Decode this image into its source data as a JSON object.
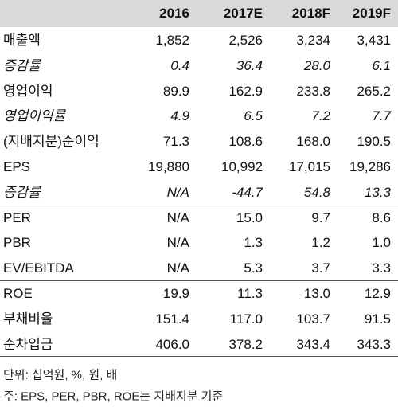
{
  "table": {
    "header": [
      "2016",
      "2017E",
      "2018F",
      "2019F"
    ],
    "sections": [
      {
        "rows": [
          {
            "label": "매출액",
            "values": [
              "1,852",
              "2,526",
              "3,234",
              "3,431"
            ],
            "italic": false
          },
          {
            "label": "증감률",
            "values": [
              "0.4",
              "36.4",
              "28.0",
              "6.1"
            ],
            "italic": true
          },
          {
            "label": "영업이익",
            "values": [
              "89.9",
              "162.9",
              "233.8",
              "265.2"
            ],
            "italic": false
          },
          {
            "label": "영업이익률",
            "values": [
              "4.9",
              "6.5",
              "7.2",
              "7.7"
            ],
            "italic": true
          },
          {
            "label": "(지배지분)순이익",
            "values": [
              "71.3",
              "108.6",
              "168.0",
              "190.5"
            ],
            "italic": false
          },
          {
            "label": "EPS",
            "values": [
              "19,880",
              "10,992",
              "17,015",
              "19,286"
            ],
            "italic": false
          },
          {
            "label": "증감률",
            "values": [
              "N/A",
              "-44.7",
              "54.8",
              "13.3"
            ],
            "italic": true
          }
        ]
      },
      {
        "rows": [
          {
            "label": "PER",
            "values": [
              "N/A",
              "15.0",
              "9.7",
              "8.6"
            ],
            "italic": false
          },
          {
            "label": "PBR",
            "values": [
              "N/A",
              "1.3",
              "1.2",
              "1.0"
            ],
            "italic": false
          },
          {
            "label": "EV/EBITDA",
            "values": [
              "N/A",
              "5.3",
              "3.7",
              "3.3"
            ],
            "italic": false
          }
        ]
      },
      {
        "rows": [
          {
            "label": "ROE",
            "values": [
              "19.9",
              "11.3",
              "13.0",
              "12.9"
            ],
            "italic": false
          },
          {
            "label": "부채비율",
            "values": [
              "151.4",
              "117.0",
              "103.7",
              "91.5"
            ],
            "italic": false
          },
          {
            "label": "순차입금",
            "values": [
              "406.0",
              "378.2",
              "343.4",
              "343.3"
            ],
            "italic": false
          }
        ]
      }
    ]
  },
  "notes": [
    "단위: 십억원, %, 원, 배",
    "주: EPS, PER, PBR, ROE는 지배지분 기준"
  ]
}
